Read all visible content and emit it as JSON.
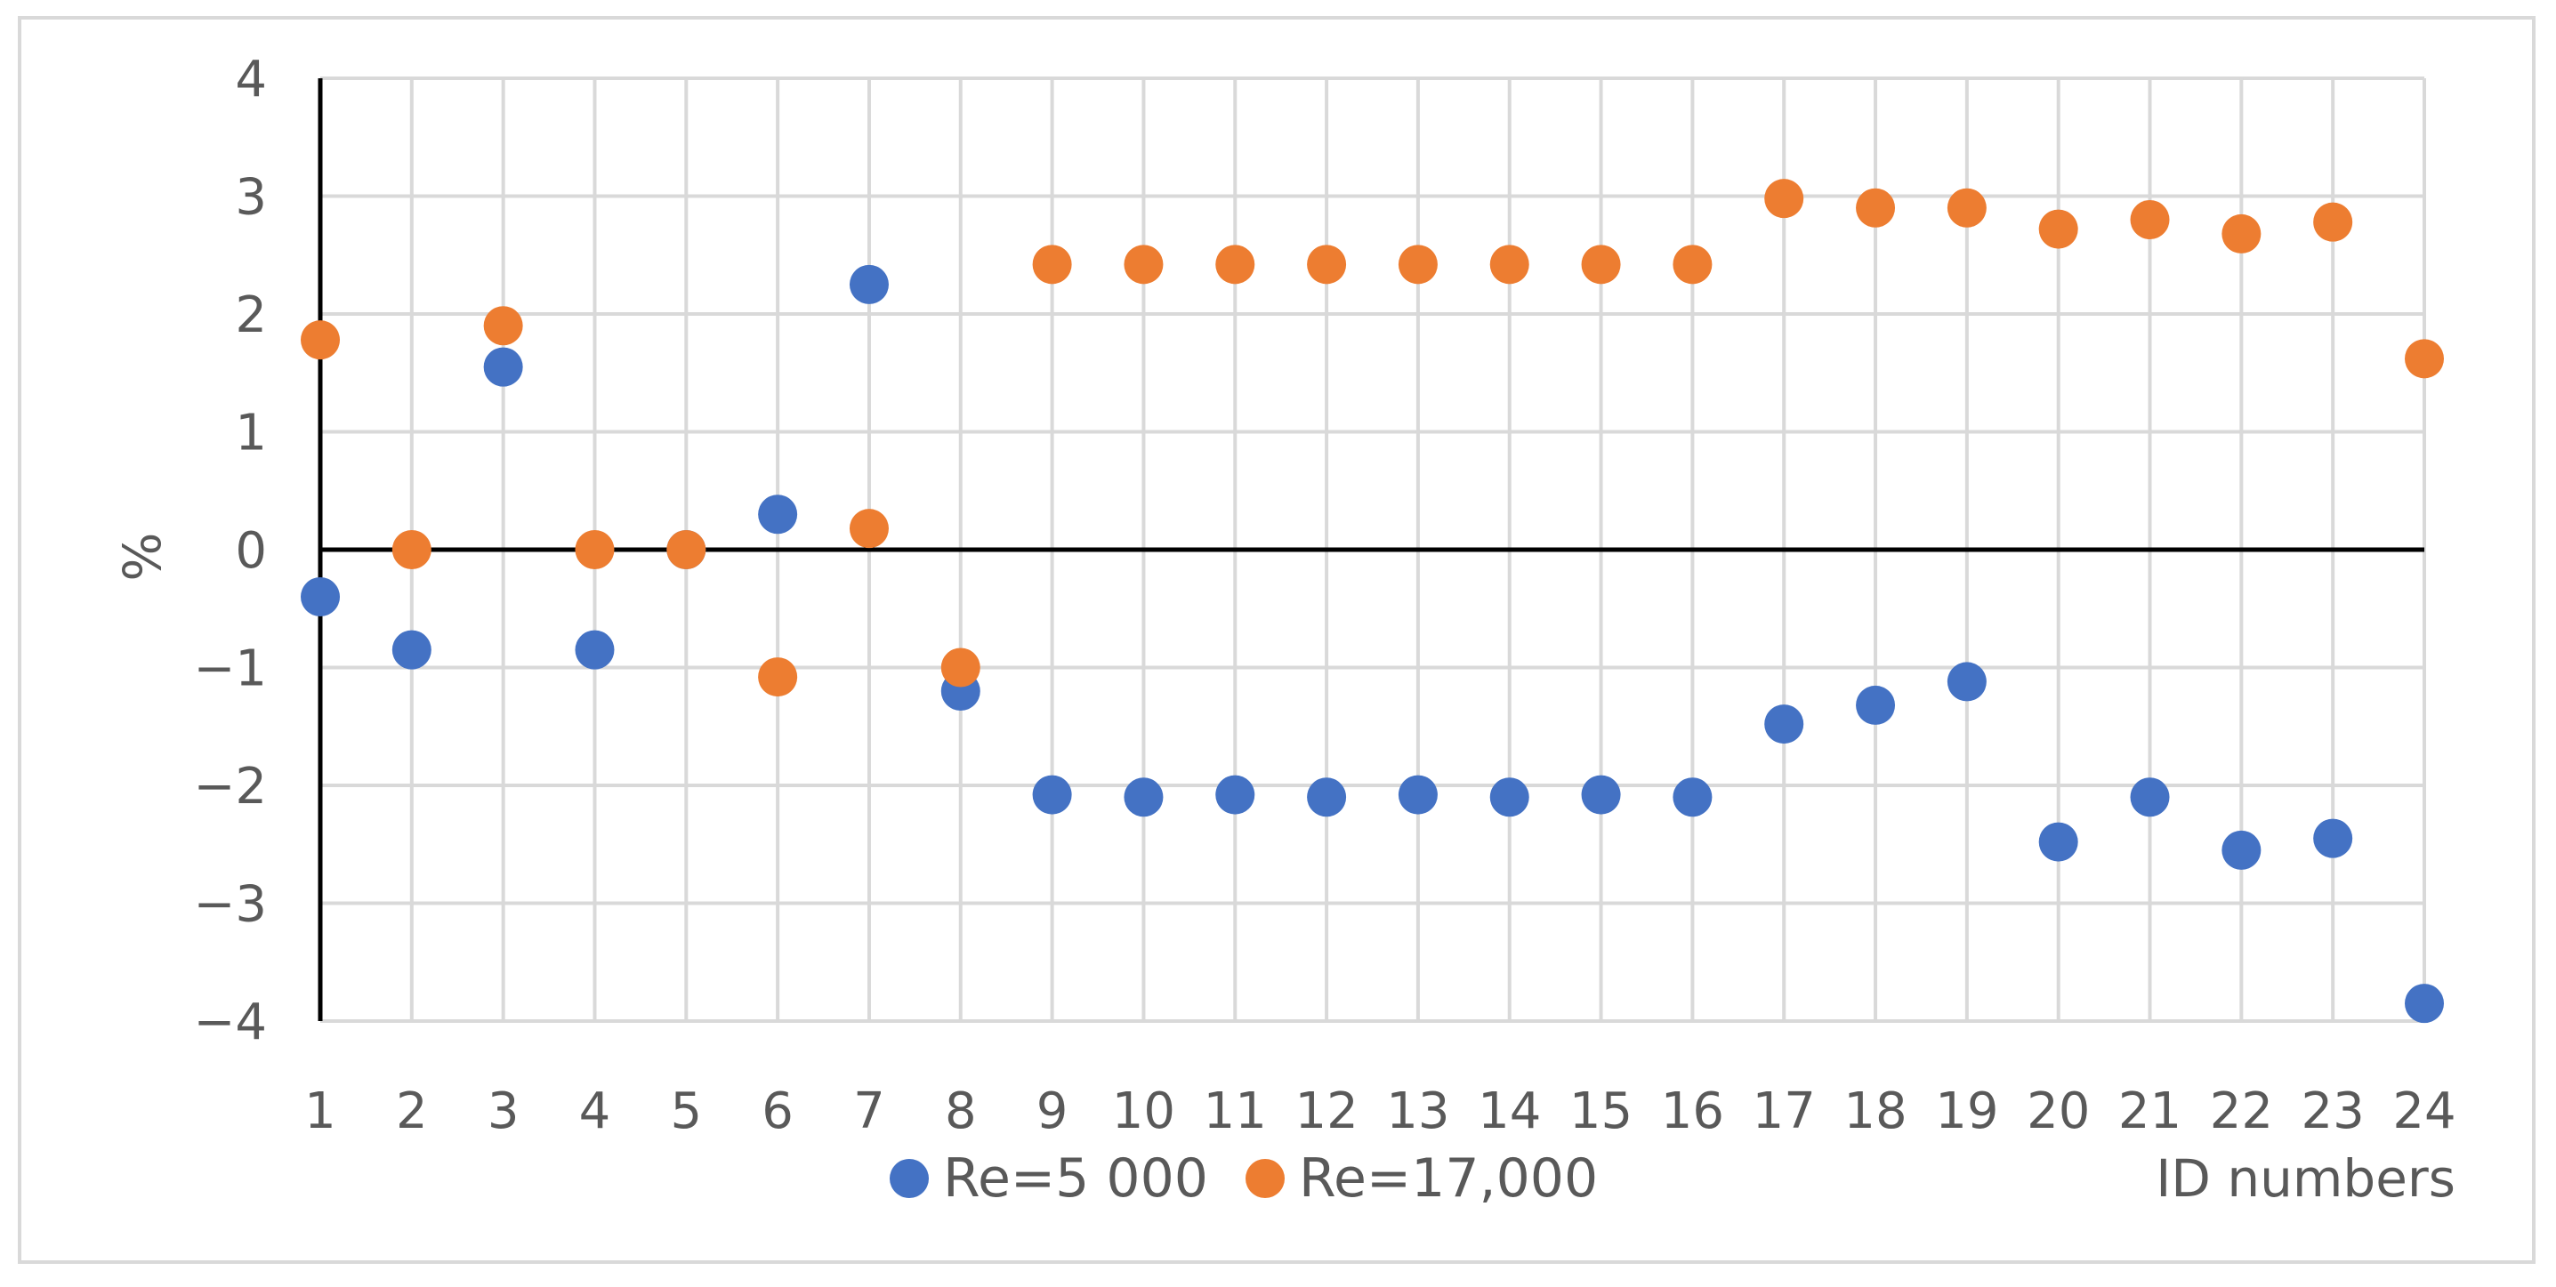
{
  "chart_data": {
    "type": "scatter",
    "title": "",
    "xlabel": "ID numbers",
    "ylabel": "%",
    "x": [
      1,
      2,
      3,
      4,
      5,
      6,
      7,
      8,
      9,
      10,
      11,
      12,
      13,
      14,
      15,
      16,
      17,
      18,
      19,
      20,
      21,
      22,
      23,
      24
    ],
    "xlim": [
      1,
      24
    ],
    "ylim": [
      -4,
      4
    ],
    "yticks": [
      4,
      3,
      2,
      1,
      0,
      -1,
      -2,
      -3,
      -4
    ],
    "ytick_labels": [
      "4",
      "3",
      "2",
      "1",
      "0",
      "−1",
      "−2",
      "−3",
      "−4"
    ],
    "xtick_labels": [
      "1",
      "2",
      "3",
      "4",
      "5",
      "6",
      "7",
      "8",
      "9",
      "10",
      "11",
      "12",
      "13",
      "14",
      "15",
      "16",
      "17",
      "18",
      "19",
      "20",
      "21",
      "22",
      "23",
      "24"
    ],
    "grid": true,
    "legend_position": "bottom",
    "series": [
      {
        "name": "Re=5 000",
        "color": "#4472c4",
        "values": [
          -0.4,
          -0.85,
          1.55,
          -0.85,
          0.0,
          0.3,
          2.25,
          -1.2,
          -2.08,
          -2.1,
          -2.08,
          -2.1,
          -2.08,
          -2.1,
          -2.08,
          -2.1,
          -1.48,
          -1.32,
          -1.12,
          -2.48,
          -2.1,
          -2.55,
          -2.45,
          -3.85
        ]
      },
      {
        "name": "Re=17,000",
        "color": "#ed7d31",
        "values": [
          1.78,
          0.0,
          1.9,
          0.0,
          0.0,
          -1.08,
          0.18,
          -1.0,
          2.42,
          2.42,
          2.42,
          2.42,
          2.42,
          2.42,
          2.42,
          2.42,
          2.98,
          2.9,
          2.9,
          2.72,
          2.8,
          2.68,
          2.78,
          1.62
        ]
      }
    ]
  }
}
